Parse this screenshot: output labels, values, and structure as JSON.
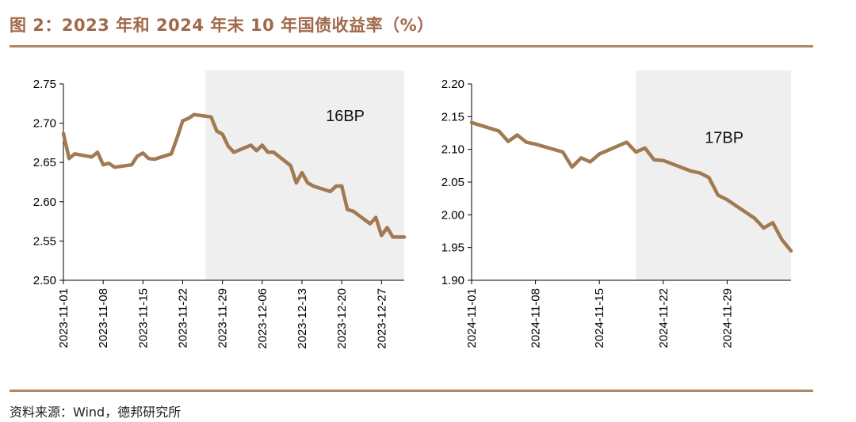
{
  "header": {
    "title": "图 2：2023 年和 2024 年末 10 年国债收益率（%）"
  },
  "footer": {
    "source": "资料来源：Wind，德邦研究所"
  },
  "colors": {
    "line": "#a27a52",
    "shade": "#efefef",
    "rule": "#b08866",
    "title": "#a0694a"
  },
  "chart_data": [
    {
      "type": "line",
      "x_axis": "date",
      "ylim": [
        2.5,
        2.75
      ],
      "yticks": [
        "2.50",
        "2.55",
        "2.60",
        "2.65",
        "2.70",
        "2.75"
      ],
      "xticks": [
        "2023-11-01",
        "2023-11-08",
        "2023-11-15",
        "2023-11-22",
        "2023-11-29",
        "2023-12-06",
        "2023-12-13",
        "2023-12-20",
        "2023-12-27"
      ],
      "x_range": [
        "2023-11-01",
        "2023-12-31"
      ],
      "shade_range": [
        "2023-11-26",
        "2023-12-31"
      ],
      "annotation": "16BP",
      "series": [
        {
          "x": [
            "2023-11-01",
            "2023-11-02",
            "2023-11-03",
            "2023-11-06",
            "2023-11-07",
            "2023-11-08",
            "2023-11-09",
            "2023-11-10",
            "2023-11-13",
            "2023-11-14",
            "2023-11-15",
            "2023-11-16",
            "2023-11-17",
            "2023-11-20",
            "2023-11-21",
            "2023-11-22",
            "2023-11-23",
            "2023-11-24",
            "2023-11-27",
            "2023-11-28",
            "2023-11-29",
            "2023-11-30",
            "2023-12-01",
            "2023-12-04",
            "2023-12-05",
            "2023-12-06",
            "2023-12-07",
            "2023-12-08",
            "2023-12-11",
            "2023-12-12",
            "2023-12-13",
            "2023-12-14",
            "2023-12-15",
            "2023-12-18",
            "2023-12-19",
            "2023-12-20",
            "2023-12-21",
            "2023-12-22",
            "2023-12-25",
            "2023-12-26",
            "2023-12-27",
            "2023-12-28",
            "2023-12-29",
            "2023-12-31"
          ],
          "values": [
            2.687,
            2.655,
            2.661,
            2.657,
            2.663,
            2.647,
            2.649,
            2.644,
            2.647,
            2.658,
            2.662,
            2.655,
            2.654,
            2.661,
            2.681,
            2.703,
            2.706,
            2.711,
            2.708,
            2.69,
            2.686,
            2.671,
            2.663,
            2.672,
            2.665,
            2.672,
            2.663,
            2.663,
            2.646,
            2.624,
            2.637,
            2.624,
            2.62,
            2.613,
            2.62,
            2.62,
            2.59,
            2.588,
            2.572,
            2.58,
            2.557,
            2.567,
            2.555,
            2.555
          ]
        }
      ]
    },
    {
      "type": "line",
      "x_axis": "date",
      "ylim": [
        1.9,
        2.2
      ],
      "yticks": [
        "1.90",
        "1.95",
        "2.00",
        "2.05",
        "2.10",
        "2.15",
        "2.20"
      ],
      "xticks": [
        "2024-11-01",
        "2024-11-08",
        "2024-11-15",
        "2024-11-22",
        "2024-11-29"
      ],
      "x_range": [
        "2024-11-01",
        "2024-12-06"
      ],
      "shade_range": [
        "2024-11-19",
        "2024-12-06"
      ],
      "annotation": "17BP",
      "series": [
        {
          "x": [
            "2024-11-01",
            "2024-11-04",
            "2024-11-05",
            "2024-11-06",
            "2024-11-07",
            "2024-11-08",
            "2024-11-11",
            "2024-11-12",
            "2024-11-13",
            "2024-11-14",
            "2024-11-15",
            "2024-11-18",
            "2024-11-19",
            "2024-11-20",
            "2024-11-21",
            "2024-11-22",
            "2024-11-25",
            "2024-11-26",
            "2024-11-27",
            "2024-11-28",
            "2024-11-29",
            "2024-12-02",
            "2024-12-03",
            "2024-12-04",
            "2024-12-05",
            "2024-12-06"
          ],
          "values": [
            2.141,
            2.128,
            2.112,
            2.122,
            2.111,
            2.108,
            2.096,
            2.073,
            2.087,
            2.081,
            2.093,
            2.111,
            2.096,
            2.102,
            2.084,
            2.083,
            2.067,
            2.064,
            2.057,
            2.03,
            2.023,
            1.995,
            1.98,
            1.988,
            1.962,
            1.945
          ]
        }
      ]
    }
  ]
}
